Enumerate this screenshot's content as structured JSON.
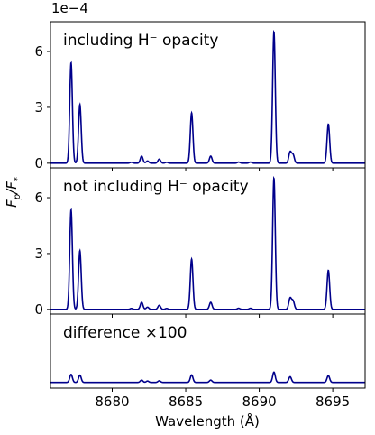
{
  "chart_data": {
    "type": "line",
    "xlabel": "Wavelength (Å)",
    "ylabel": "F_p/F_*",
    "ylabel_main": "F",
    "ylabel_main_sub": "p",
    "ylabel_sep": "/F",
    "ylabel_sep_sub": "*",
    "offset_text": "1e−4",
    "xlim": [
      8675.8,
      8697.2
    ],
    "x_ticks": [
      8680,
      8685,
      8690,
      8695
    ],
    "x_tick_labels": [
      "8680",
      "8685",
      "8690",
      "8695"
    ],
    "line_color": "#00008b",
    "panels": [
      {
        "annotation": "including H⁻ opacity",
        "ylim": [
          -0.25,
          7.6
        ],
        "y_ticks": [
          0,
          3,
          6
        ],
        "y_tick_labels": [
          "0",
          "3",
          "6"
        ],
        "peaks": [
          {
            "x": 8677.2,
            "y": 5.4
          },
          {
            "x": 8677.8,
            "y": 3.15
          },
          {
            "x": 8681.3,
            "y": 0.05
          },
          {
            "x": 8682.0,
            "y": 0.38
          },
          {
            "x": 8682.4,
            "y": 0.12
          },
          {
            "x": 8683.2,
            "y": 0.22
          },
          {
            "x": 8683.7,
            "y": 0.05
          },
          {
            "x": 8685.4,
            "y": 2.7
          },
          {
            "x": 8686.7,
            "y": 0.38
          },
          {
            "x": 8688.6,
            "y": 0.06
          },
          {
            "x": 8689.4,
            "y": 0.06
          },
          {
            "x": 8691.0,
            "y": 7.05
          },
          {
            "x": 8692.1,
            "y": 0.6
          },
          {
            "x": 8692.3,
            "y": 0.45
          },
          {
            "x": 8694.7,
            "y": 2.1
          }
        ]
      },
      {
        "annotation": "not including H⁻ opacity",
        "ylim": [
          -0.25,
          7.6
        ],
        "y_ticks": [
          0,
          3,
          6
        ],
        "y_tick_labels": [
          "0",
          "3",
          "6"
        ],
        "peaks": [
          {
            "x": 8677.2,
            "y": 5.35
          },
          {
            "x": 8677.8,
            "y": 3.15
          },
          {
            "x": 8681.3,
            "y": 0.05
          },
          {
            "x": 8682.0,
            "y": 0.38
          },
          {
            "x": 8682.4,
            "y": 0.12
          },
          {
            "x": 8683.2,
            "y": 0.22
          },
          {
            "x": 8683.7,
            "y": 0.05
          },
          {
            "x": 8685.4,
            "y": 2.7
          },
          {
            "x": 8686.7,
            "y": 0.38
          },
          {
            "x": 8688.6,
            "y": 0.06
          },
          {
            "x": 8689.4,
            "y": 0.06
          },
          {
            "x": 8691.0,
            "y": 7.05
          },
          {
            "x": 8692.1,
            "y": 0.6
          },
          {
            "x": 8692.3,
            "y": 0.45
          },
          {
            "x": 8694.7,
            "y": 2.1
          }
        ]
      },
      {
        "annotation": "difference ×100",
        "ylim": [
          -0.25,
          3.0
        ],
        "y_ticks": [],
        "y_tick_labels": [],
        "peaks": [
          {
            "x": 8677.2,
            "y": 0.35
          },
          {
            "x": 8677.8,
            "y": 0.32
          },
          {
            "x": 8682.0,
            "y": 0.1
          },
          {
            "x": 8682.4,
            "y": 0.06
          },
          {
            "x": 8683.2,
            "y": 0.07
          },
          {
            "x": 8685.4,
            "y": 0.33
          },
          {
            "x": 8686.7,
            "y": 0.1
          },
          {
            "x": 8691.0,
            "y": 0.45
          },
          {
            "x": 8692.1,
            "y": 0.25
          },
          {
            "x": 8694.7,
            "y": 0.3
          }
        ]
      }
    ]
  }
}
